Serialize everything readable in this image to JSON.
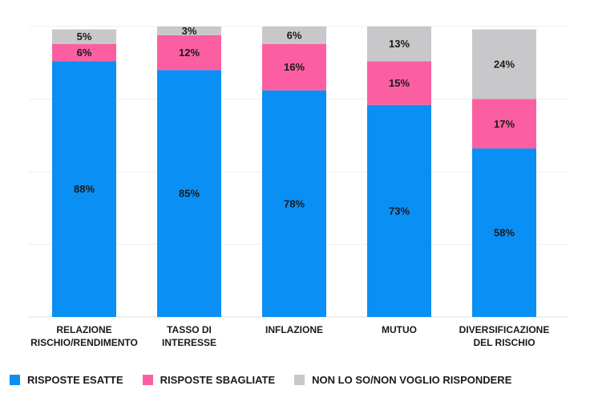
{
  "chart_data": {
    "type": "bar",
    "stacked": true,
    "categories": [
      [
        "RELAZIONE",
        "RISCHIO/RENDIMENTO"
      ],
      [
        "TASSO DI",
        "INTERESSE"
      ],
      [
        "INFLAZIONE"
      ],
      [
        "MUTUO"
      ],
      [
        "DIVERSIFICAZIONE",
        "DEL RISCHIO"
      ]
    ],
    "series": [
      {
        "name": "RISPOSTE ESATTE",
        "color": "#0a8ff5",
        "values": [
          88,
          85,
          78,
          73,
          58
        ]
      },
      {
        "name": "RISPOSTE SBAGLIATE",
        "color": "#fb5fa1",
        "values": [
          6,
          12,
          16,
          15,
          17
        ]
      },
      {
        "name": "NON LO SO/NON VOGLIO RISPONDERE",
        "color": "#c8c8ca",
        "values": [
          5,
          3,
          6,
          13,
          24
        ]
      }
    ],
    "value_suffix": "%",
    "ylim": [
      0,
      100
    ],
    "grid": true,
    "legend_position": "bottom"
  }
}
